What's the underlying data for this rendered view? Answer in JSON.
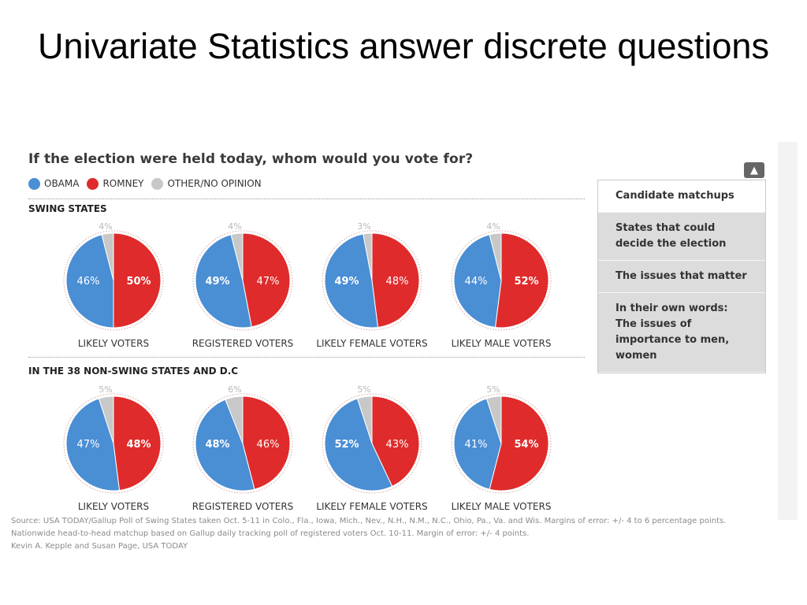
{
  "slide": {
    "title": "Univariate Statistics answer discrete questions"
  },
  "graphic": {
    "question": "If the election were held today, whom would you vote for?",
    "legend": [
      {
        "label": "OBAMA",
        "color": "#4a8ed4"
      },
      {
        "label": "ROMNEY",
        "color": "#df2b2b"
      },
      {
        "label": "OTHER/NO OPINION",
        "color": "#c8c8c8"
      }
    ],
    "sections": [
      {
        "title": "SWING STATES"
      },
      {
        "title": "IN THE 38 NON-SWING STATES AND D.C"
      }
    ],
    "sidebar": {
      "collapse_icon": "chevron-up-icon",
      "items": [
        {
          "label": "Candidate matchups",
          "active": true
        },
        {
          "label": "States that could\ndecide the election",
          "active": false
        },
        {
          "label": "The issues that matter",
          "active": false
        },
        {
          "label": "In their own words:\nThe issues of\nimportance to men,\nwomen",
          "active": false
        }
      ]
    },
    "footnote": [
      "Source: USA TODAY/Gallup Poll of Swing States taken Oct. 5-11 in Colo., Fla., Iowa, Mich., Nev., N.H., N.M., N.C., Ohio, Pa., Va. and Wis. Margins of error: +/- 4 to 6 percentage points.",
      "Nationwide head-to-head matchup based on Gallup daily tracking poll of registered voters Oct. 10-11. Margin of error: +/- 4 points.",
      "Kevin A. Kepple and Susan Page, USA TODAY"
    ]
  },
  "chart_data": [
    {
      "type": "pie",
      "title": "LIKELY VOTERS",
      "section": "SWING STATES",
      "labels": [
        "OBAMA",
        "ROMNEY",
        "OTHER/NO OPINION"
      ],
      "values": [
        46,
        50,
        4
      ],
      "value_labels": [
        "46%",
        "50%",
        "4%"
      ],
      "bold": "ROMNEY",
      "colors": [
        "#4a8ed4",
        "#df2b2b",
        "#c8c8c8"
      ]
    },
    {
      "type": "pie",
      "title": "REGISTERED VOTERS",
      "section": "SWING STATES",
      "labels": [
        "OBAMA",
        "ROMNEY",
        "OTHER/NO OPINION"
      ],
      "values": [
        49,
        47,
        4
      ],
      "value_labels": [
        "49%",
        "47%",
        "4%"
      ],
      "bold": "OBAMA",
      "colors": [
        "#4a8ed4",
        "#df2b2b",
        "#c8c8c8"
      ]
    },
    {
      "type": "pie",
      "title": "LIKELY FEMALE VOTERS",
      "section": "SWING STATES",
      "labels": [
        "OBAMA",
        "ROMNEY",
        "OTHER/NO OPINION"
      ],
      "values": [
        49,
        48,
        3
      ],
      "value_labels": [
        "49%",
        "48%",
        "3%"
      ],
      "bold": "OBAMA",
      "colors": [
        "#4a8ed4",
        "#df2b2b",
        "#c8c8c8"
      ]
    },
    {
      "type": "pie",
      "title": "LIKELY MALE VOTERS",
      "section": "SWING STATES",
      "labels": [
        "OBAMA",
        "ROMNEY",
        "OTHER/NO OPINION"
      ],
      "values": [
        44,
        52,
        4
      ],
      "value_labels": [
        "44%",
        "52%",
        "4%"
      ],
      "bold": "ROMNEY",
      "colors": [
        "#4a8ed4",
        "#df2b2b",
        "#c8c8c8"
      ]
    },
    {
      "type": "pie",
      "title": "LIKELY VOTERS",
      "section": "IN THE 38 NON-SWING STATES AND D.C",
      "labels": [
        "OBAMA",
        "ROMNEY",
        "OTHER/NO OPINION"
      ],
      "values": [
        47,
        48,
        5
      ],
      "value_labels": [
        "47%",
        "48%",
        "5%"
      ],
      "bold": "ROMNEY",
      "colors": [
        "#4a8ed4",
        "#df2b2b",
        "#c8c8c8"
      ]
    },
    {
      "type": "pie",
      "title": "REGISTERED VOTERS",
      "section": "IN THE 38 NON-SWING STATES AND D.C",
      "labels": [
        "OBAMA",
        "ROMNEY",
        "OTHER/NO OPINION"
      ],
      "values": [
        48,
        46,
        6
      ],
      "value_labels": [
        "48%",
        "46%",
        "6%"
      ],
      "bold": "OBAMA",
      "colors": [
        "#4a8ed4",
        "#df2b2b",
        "#c8c8c8"
      ]
    },
    {
      "type": "pie",
      "title": "LIKELY FEMALE VOTERS",
      "section": "IN THE 38 NON-SWING STATES AND D.C",
      "labels": [
        "OBAMA",
        "ROMNEY",
        "OTHER/NO OPINION"
      ],
      "values": [
        52,
        43,
        5
      ],
      "value_labels": [
        "52%",
        "43%",
        "5%"
      ],
      "bold": "OBAMA",
      "colors": [
        "#4a8ed4",
        "#df2b2b",
        "#c8c8c8"
      ]
    },
    {
      "type": "pie",
      "title": "LIKELY MALE VOTERS",
      "section": "IN THE 38 NON-SWING STATES AND D.C",
      "labels": [
        "OBAMA",
        "ROMNEY",
        "OTHER/NO OPINION"
      ],
      "values": [
        41,
        54,
        5
      ],
      "value_labels": [
        "41%",
        "54%",
        "5%"
      ],
      "bold": "ROMNEY",
      "colors": [
        "#4a8ed4",
        "#df2b2b",
        "#c8c8c8"
      ]
    }
  ]
}
